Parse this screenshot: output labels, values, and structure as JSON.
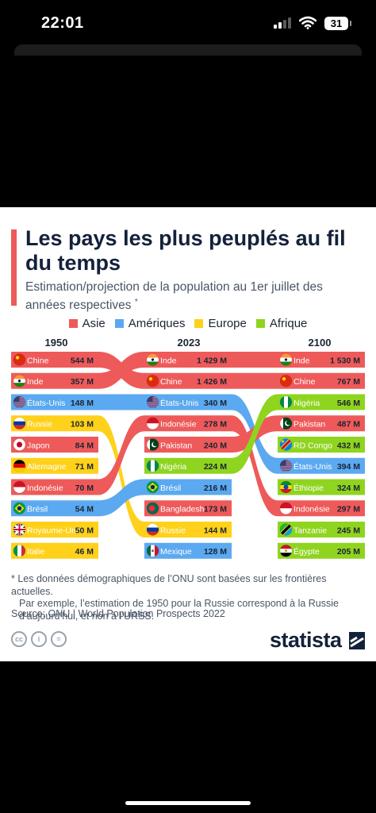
{
  "status_bar": {
    "time": "22:01",
    "battery": "31"
  },
  "title_text": "Les pays les plus peuplés au fil du temps",
  "subtitle_text": "Estimation/projection de la population au 1er juillet des années respectives",
  "subtitle_mark": "*",
  "legend": [
    {
      "key": "asie",
      "label": "Asie",
      "color": "#ee5a5a"
    },
    {
      "key": "ameriques",
      "label": "Amériques",
      "color": "#5ba9f0"
    },
    {
      "key": "europe",
      "label": "Europe",
      "color": "#ffd11a"
    },
    {
      "key": "afrique",
      "label": "Afrique",
      "color": "#8fd41f"
    }
  ],
  "chart_data": {
    "type": "table",
    "unit": "M",
    "years": [
      "1950",
      "2023",
      "2100"
    ],
    "columns": [
      {
        "year": "1950",
        "rows": [
          {
            "country": "Chine",
            "value": "544 M",
            "region": "asie",
            "flag": "china-flag-icon"
          },
          {
            "country": "Inde",
            "value": "357 M",
            "region": "asie",
            "flag": "india-flag-icon"
          },
          {
            "country": "États-Unis",
            "value": "148 M",
            "region": "ameriques",
            "flag": "usa-flag-icon"
          },
          {
            "country": "Russie",
            "value": "103 M",
            "region": "europe",
            "flag": "russia-flag-icon"
          },
          {
            "country": "Japon",
            "value": "84 M",
            "region": "asie",
            "flag": "japan-flag-icon"
          },
          {
            "country": "Allemagne",
            "value": "71 M",
            "region": "europe",
            "flag": "germany-flag-icon"
          },
          {
            "country": "Indonésie",
            "value": "70 M",
            "region": "asie",
            "flag": "indonesia-flag-icon"
          },
          {
            "country": "Brésil",
            "value": "54 M",
            "region": "ameriques",
            "flag": "brazil-flag-icon"
          },
          {
            "country": "Royaume-Uni",
            "value": "50 M",
            "region": "europe",
            "flag": "uk-flag-icon"
          },
          {
            "country": "Italie",
            "value": "46 M",
            "region": "europe",
            "flag": "italy-flag-icon"
          }
        ]
      },
      {
        "year": "2023",
        "rows": [
          {
            "country": "Inde",
            "value": "1 429 M",
            "region": "asie",
            "flag": "india-flag-icon"
          },
          {
            "country": "Chine",
            "value": "1 426 M",
            "region": "asie",
            "flag": "china-flag-icon"
          },
          {
            "country": "États-Unis",
            "value": "340 M",
            "region": "ameriques",
            "flag": "usa-flag-icon"
          },
          {
            "country": "Indonésie",
            "value": "278 M",
            "region": "asie",
            "flag": "indonesia-flag-icon"
          },
          {
            "country": "Pakistan",
            "value": "240 M",
            "region": "asie",
            "flag": "pakistan-flag-icon"
          },
          {
            "country": "Nigéria",
            "value": "224 M",
            "region": "afrique",
            "flag": "nigeria-flag-icon"
          },
          {
            "country": "Brésil",
            "value": "216 M",
            "region": "ameriques",
            "flag": "brazil-flag-icon"
          },
          {
            "country": "Bangladesh",
            "value": "173 M",
            "region": "asie",
            "flag": "bangladesh-flag-icon"
          },
          {
            "country": "Russie",
            "value": "144 M",
            "region": "europe",
            "flag": "russia-flag-icon"
          },
          {
            "country": "Mexique",
            "value": "128 M",
            "region": "ameriques",
            "flag": "mexico-flag-icon"
          }
        ]
      },
      {
        "year": "2100",
        "rows": [
          {
            "country": "Inde",
            "value": "1 530 M",
            "region": "asie",
            "flag": "india-flag-icon"
          },
          {
            "country": "Chine",
            "value": "767 M",
            "region": "asie",
            "flag": "china-flag-icon"
          },
          {
            "country": "Nigéria",
            "value": "546 M",
            "region": "afrique",
            "flag": "nigeria-flag-icon"
          },
          {
            "country": "Pakistan",
            "value": "487 M",
            "region": "asie",
            "flag": "pakistan-flag-icon"
          },
          {
            "country": "RD Congo",
            "value": "432 M",
            "region": "afrique",
            "flag": "drc-flag-icon"
          },
          {
            "country": "États-Unis",
            "value": "394 M",
            "region": "ameriques",
            "flag": "usa-flag-icon"
          },
          {
            "country": "Éthiopie",
            "value": "324 M",
            "region": "afrique",
            "flag": "ethiopia-flag-icon"
          },
          {
            "country": "Indonésie",
            "value": "297 M",
            "region": "asie",
            "flag": "indonesia-flag-icon"
          },
          {
            "country": "Tanzanie",
            "value": "245 M",
            "region": "afrique",
            "flag": "tanzania-flag-icon"
          },
          {
            "country": "Égypte",
            "value": "205 M",
            "region": "afrique",
            "flag": "egypt-flag-icon"
          }
        ]
      }
    ]
  },
  "footnote": {
    "line1": "* Les données démographiques de l’ONU sont basées sur les frontières actuelles.",
    "line2": "Par exemple, l’estimation de 1950 pour la Russie correspond à la Russie",
    "line3": "d’aujourd’hui, et non à l’URSS."
  },
  "source": "Source: ONU | World Population Prospects 2022",
  "license_icons": [
    "cc-icon",
    "by-icon",
    "nd-icon"
  ],
  "license_glyphs": [
    "cc",
    "i",
    "="
  ],
  "brand": "statista"
}
